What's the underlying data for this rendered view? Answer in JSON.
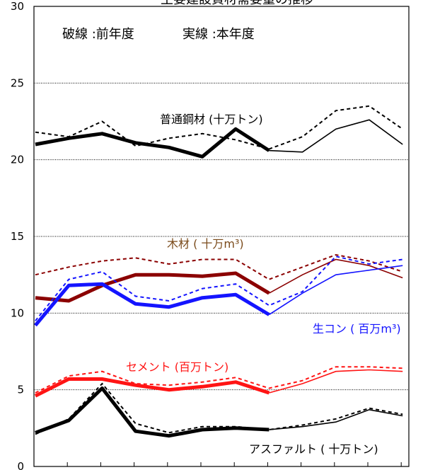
{
  "chart_data": {
    "type": "line",
    "title": "主要建設資材需要量の推移",
    "legend_note": {
      "dashed": "破線 :前年度",
      "solid": "実線 :本年度"
    },
    "ylim": [
      0,
      30
    ],
    "yticks": [
      "0",
      "5",
      "10",
      "15",
      "20",
      "25",
      "30"
    ],
    "x_points": 12,
    "bold_points": 8,
    "grid": {
      "horizontal": true,
      "vertical": false
    },
    "series": [
      {
        "key": "steel",
        "name": "普通鋼材 (十万トン)",
        "color": "#000000",
        "current": [
          21.0,
          21.4,
          21.7,
          21.1,
          20.8,
          20.2,
          22.0,
          20.6,
          20.5,
          22.0,
          22.6,
          21.0
        ],
        "previous": [
          21.8,
          21.5,
          22.5,
          20.9,
          21.4,
          21.7,
          21.3,
          20.7,
          21.5,
          23.2,
          23.5,
          22.0
        ]
      },
      {
        "key": "timber",
        "name": "木材 ( 十万m³)",
        "color": "#8B0000",
        "label_color": "#7A4A1A",
        "current": [
          11.0,
          10.8,
          11.8,
          12.5,
          12.5,
          12.4,
          12.6,
          11.3,
          12.5,
          13.5,
          13.1,
          12.3
        ],
        "previous": [
          12.5,
          13.0,
          13.4,
          13.6,
          13.2,
          13.5,
          13.5,
          12.2,
          13.0,
          13.8,
          13.4,
          12.7
        ]
      },
      {
        "key": "concrete",
        "name": "生コン ( 百万m³)",
        "color": "#1414FF",
        "current": [
          9.2,
          11.8,
          11.9,
          10.6,
          10.4,
          11.0,
          11.2,
          9.9,
          11.3,
          12.5,
          12.8,
          13.1
        ],
        "previous": [
          9.5,
          12.2,
          12.7,
          11.1,
          10.8,
          11.6,
          11.9,
          10.5,
          11.4,
          13.7,
          13.2,
          13.5
        ]
      },
      {
        "key": "cement",
        "name": "セメント (百万トン)",
        "color": "#FF1414",
        "current": [
          4.6,
          5.7,
          5.7,
          5.3,
          5.0,
          5.2,
          5.5,
          4.8,
          5.4,
          6.2,
          6.3,
          6.2
        ],
        "previous": [
          4.8,
          5.9,
          6.2,
          5.4,
          5.3,
          5.5,
          5.8,
          5.1,
          5.6,
          6.5,
          6.5,
          6.4
        ]
      },
      {
        "key": "asphalt",
        "name": "アスファルト ( 十万トン)",
        "color": "#000000",
        "current": [
          2.2,
          3.0,
          5.1,
          2.3,
          2.0,
          2.4,
          2.5,
          2.4,
          2.6,
          2.9,
          3.7,
          3.3
        ],
        "previous": [
          2.1,
          3.1,
          5.4,
          2.8,
          2.2,
          2.6,
          2.6,
          2.4,
          2.7,
          3.1,
          3.8,
          3.4
        ]
      }
    ]
  }
}
